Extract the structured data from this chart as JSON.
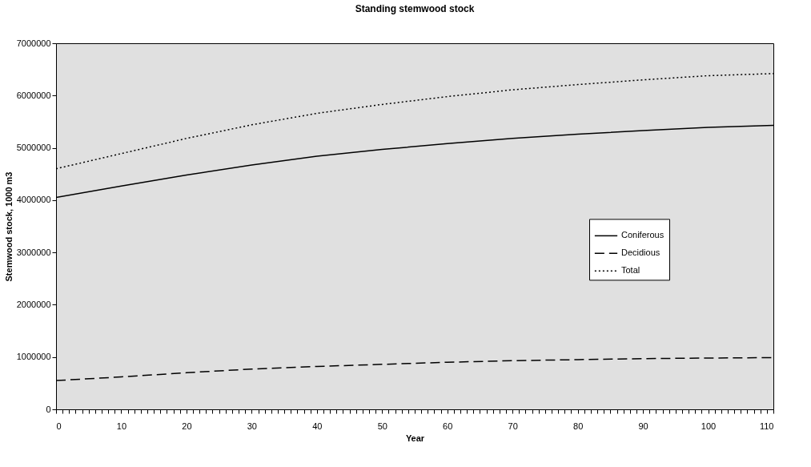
{
  "chart_data": {
    "type": "line",
    "title": "Standing stemwood stock",
    "xlabel": "Year",
    "ylabel": "Stemwood stock, 1000 m3",
    "x": [
      0,
      10,
      20,
      30,
      40,
      50,
      60,
      70,
      80,
      90,
      100,
      110
    ],
    "series": [
      {
        "name": "Coniferous",
        "color": "#000000",
        "line_style": "solid",
        "values": [
          4050000,
          4270000,
          4480000,
          4670000,
          4840000,
          4970000,
          5080000,
          5180000,
          5260000,
          5330000,
          5390000,
          5430000
        ]
      },
      {
        "name": "Decidious",
        "color": "#000000",
        "line_style": "dashed",
        "values": [
          550000,
          620000,
          700000,
          770000,
          820000,
          860000,
          900000,
          930000,
          950000,
          970000,
          980000,
          990000
        ]
      },
      {
        "name": "Total",
        "color": "#000000",
        "line_style": "dotted",
        "values": [
          4600000,
          4890000,
          5180000,
          5440000,
          5660000,
          5830000,
          5980000,
          6110000,
          6210000,
          6300000,
          6380000,
          6420000
        ]
      }
    ],
    "xlim": [
      0,
      110
    ],
    "xticks": [
      0,
      {
        "value": 1,
        "label": null
      },
      {
        "value": 2,
        "label": null
      },
      {
        "value": 3,
        "label": null
      },
      {
        "value": 4,
        "label": null
      },
      {
        "value": 5,
        "label": null
      },
      {
        "value": 6,
        "label": null
      },
      {
        "value": 7,
        "label": null
      },
      {
        "value": 8,
        "label": null
      },
      {
        "value": 9,
        "label": null
      },
      10,
      {
        "value": 11,
        "label": null
      },
      {
        "value": 12,
        "label": null
      },
      {
        "value": 13,
        "label": null
      },
      {
        "value": 14,
        "label": null
      },
      {
        "value": 15,
        "label": null
      },
      {
        "value": 16,
        "label": null
      },
      {
        "value": 17,
        "label": null
      },
      {
        "value": 18,
        "label": null
      },
      {
        "value": 19,
        "label": null
      },
      20,
      {
        "value": 21,
        "label": null
      },
      {
        "value": 22,
        "label": null
      },
      {
        "value": 23,
        "label": null
      },
      {
        "value": 24,
        "label": null
      },
      {
        "value": 25,
        "label": null
      },
      {
        "value": 26,
        "label": null
      },
      {
        "value": 27,
        "label": null
      },
      {
        "value": 28,
        "label": null
      },
      {
        "value": 29,
        "label": null
      },
      30,
      {
        "value": 31,
        "label": null
      },
      {
        "value": 32,
        "label": null
      },
      {
        "value": 33,
        "label": null
      },
      {
        "value": 34,
        "label": null
      },
      {
        "value": 35,
        "label": null
      },
      {
        "value": 36,
        "label": null
      },
      {
        "value": 37,
        "label": null
      },
      {
        "value": 38,
        "label": null
      },
      {
        "value": 39,
        "label": null
      },
      40,
      {
        "value": 41,
        "label": null
      },
      {
        "value": 42,
        "label": null
      },
      {
        "value": 43,
        "label": null
      },
      {
        "value": 44,
        "label": null
      },
      {
        "value": 45,
        "label": null
      },
      {
        "value": 46,
        "label": null
      },
      {
        "value": 47,
        "label": null
      },
      {
        "value": 48,
        "label": null
      },
      {
        "value": 49,
        "label": null
      },
      50,
      {
        "value": 51,
        "label": null
      },
      {
        "value": 52,
        "label": null
      },
      {
        "value": 53,
        "label": null
      },
      {
        "value": 54,
        "label": null
      },
      {
        "value": 55,
        "label": null
      },
      {
        "value": 56,
        "label": null
      },
      {
        "value": 57,
        "label": null
      },
      {
        "value": 58,
        "label": null
      },
      {
        "value": 59,
        "label": null
      },
      60,
      {
        "value": 61,
        "label": null
      },
      {
        "value": 62,
        "label": null
      },
      {
        "value": 63,
        "label": null
      },
      {
        "value": 64,
        "label": null
      },
      {
        "value": 65,
        "label": null
      },
      {
        "value": 66,
        "label": null
      },
      {
        "value": 67,
        "label": null
      },
      {
        "value": 68,
        "label": null
      },
      {
        "value": 69,
        "label": null
      },
      70,
      {
        "value": 71,
        "label": null
      },
      {
        "value": 72,
        "label": null
      },
      {
        "value": 73,
        "label": null
      },
      {
        "value": 74,
        "label": null
      },
      {
        "value": 75,
        "label": null
      },
      {
        "value": 76,
        "label": null
      },
      {
        "value": 77,
        "label": null
      },
      {
        "value": 78,
        "label": null
      },
      {
        "value": 79,
        "label": null
      },
      80,
      {
        "value": 81,
        "label": null
      },
      {
        "value": 82,
        "label": null
      },
      {
        "value": 83,
        "label": null
      },
      {
        "value": 84,
        "label": null
      },
      {
        "value": 85,
        "label": null
      },
      {
        "value": 86,
        "label": null
      },
      {
        "value": 87,
        "label": null
      },
      {
        "value": 88,
        "label": null
      },
      {
        "value": 89,
        "label": null
      },
      90,
      {
        "value": 91,
        "label": null
      },
      {
        "value": 92,
        "label": null
      },
      {
        "value": 93,
        "label": null
      },
      {
        "value": 94,
        "label": null
      },
      {
        "value": 95,
        "label": null
      },
      {
        "value": 96,
        "label": null
      },
      {
        "value": 97,
        "label": null
      },
      {
        "value": 98,
        "label": null
      },
      {
        "value": 99,
        "label": null
      },
      100,
      {
        "value": 101,
        "label": null
      },
      {
        "value": 102,
        "label": null
      },
      {
        "value": 103,
        "label": null
      },
      {
        "value": 104,
        "label": null
      },
      {
        "value": 105,
        "label": null
      },
      {
        "value": 106,
        "label": null
      },
      {
        "value": 107,
        "label": null
      },
      {
        "value": 108,
        "label": null
      },
      {
        "value": 109,
        "label": null
      },
      110
    ],
    "ylim": [
      0,
      7000000
    ],
    "yticks": [
      0,
      1000000,
      2000000,
      3000000,
      4000000,
      5000000,
      6000000,
      7000000
    ],
    "grid": false,
    "legend": "right"
  }
}
